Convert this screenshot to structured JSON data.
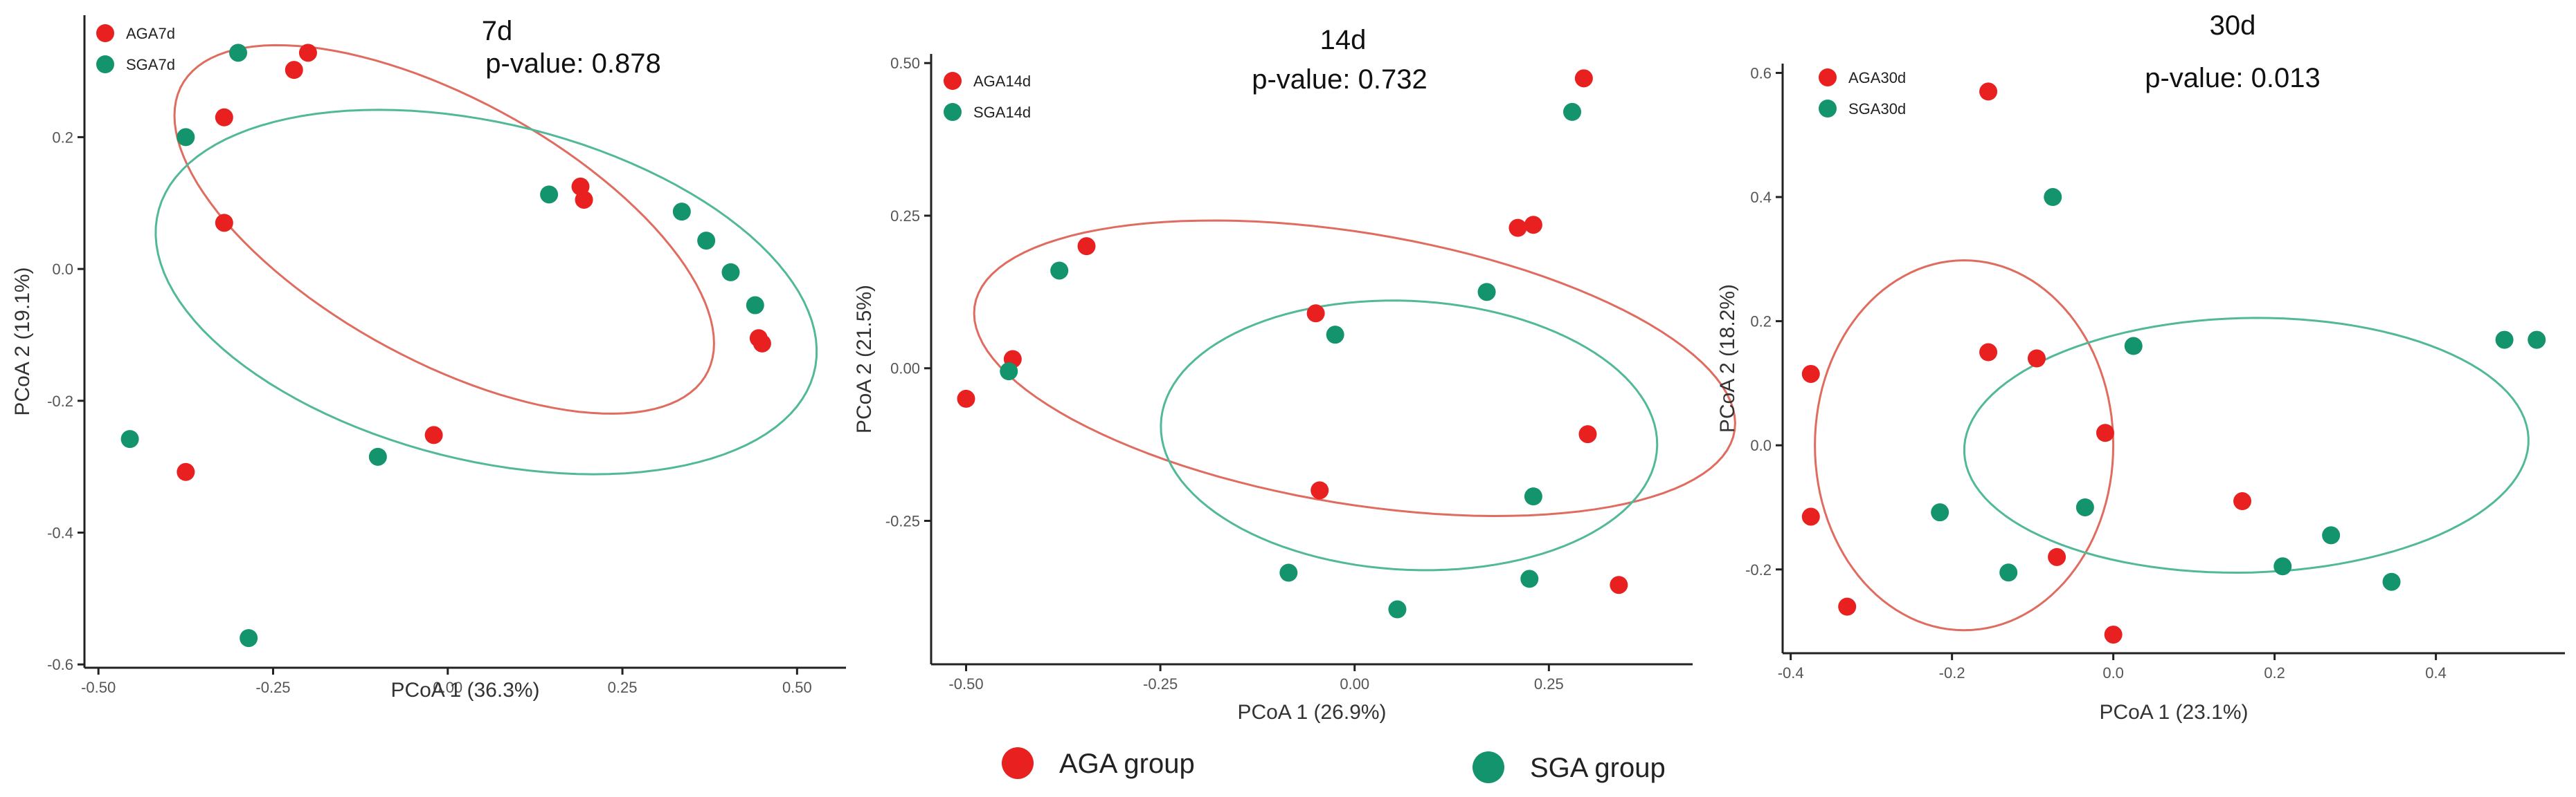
{
  "groups": {
    "AGA": {
      "color": "#e8201f",
      "ellipse_color": "#e06b5f"
    },
    "SGA": {
      "color": "#14946c",
      "ellipse_color": "#52b89a"
    }
  },
  "bottom_legend": {
    "AGA": "AGA group",
    "SGA": "SGA group"
  },
  "chart_data": [
    {
      "type": "scatter",
      "title": "7d",
      "pvalue_label": "p-value: 0.878",
      "xlabel": "PCoA 1 (36.3%)",
      "ylabel": "PCoA 2 (19.1%)",
      "xlim": [
        -0.52,
        0.57
      ],
      "ylim": [
        -0.605,
        0.385
      ],
      "xticks": [
        -0.5,
        -0.25,
        0,
        0.25,
        0.5
      ],
      "xtick_labels": [
        "-0.50",
        "-0.25",
        "0.00",
        "0.25",
        "0.50"
      ],
      "yticks": [
        -0.6,
        -0.4,
        -0.2,
        0,
        0.2
      ],
      "ytick_labels": [
        "-0.6",
        "-0.4",
        "-0.2",
        "0.0",
        "0.2"
      ],
      "legend": [
        "AGA7d",
        "SGA7d"
      ],
      "series": [
        {
          "name": "AGA7d",
          "group": "AGA",
          "points": [
            [
              -0.22,
              0.302
            ],
            [
              -0.2,
              0.328
            ],
            [
              -0.32,
              0.23
            ],
            [
              -0.32,
              0.07
            ],
            [
              0.19,
              0.125
            ],
            [
              0.195,
              0.105
            ],
            [
              -0.02,
              -0.252
            ],
            [
              -0.375,
              -0.308
            ],
            [
              0.445,
              -0.105
            ],
            [
              0.45,
              -0.113
            ]
          ]
        },
        {
          "name": "SGA7d",
          "group": "SGA",
          "points": [
            [
              -0.3,
              0.328
            ],
            [
              -0.375,
              0.2
            ],
            [
              0.145,
              0.113
            ],
            [
              0.335,
              0.087
            ],
            [
              0.37,
              0.043
            ],
            [
              0.405,
              -0.005
            ],
            [
              0.44,
              -0.055
            ],
            [
              -0.1,
              -0.285
            ],
            [
              -0.455,
              -0.258
            ],
            [
              -0.285,
              -0.56
            ]
          ]
        }
      ],
      "ellipses": [
        {
          "group": "AGA",
          "center": [
            -0.005,
            0.06
          ],
          "rx": 0.435,
          "ry": 0.195,
          "angle_deg": -31
        },
        {
          "group": "SGA",
          "center": [
            0.055,
            -0.035
          ],
          "rx": 0.485,
          "ry": 0.255,
          "angle_deg": -15
        }
      ]
    },
    {
      "type": "scatter",
      "title": "14d",
      "pvalue_label": "p-value: 0.732",
      "xlabel": "PCoA 1 (26.9%)",
      "ylabel": "PCoA 2 (21.5%)",
      "xlim": [
        -0.545,
        0.435
      ],
      "ylim": [
        -0.485,
        0.515
      ],
      "xticks": [
        -0.5,
        -0.25,
        0,
        0.25
      ],
      "xtick_labels": [
        "-0.50",
        "-0.25",
        "0.00",
        "0.25"
      ],
      "yticks": [
        -0.25,
        0,
        0.25,
        0.5
      ],
      "ytick_labels": [
        "-0.25",
        "0.00",
        "0.25",
        "0.50"
      ],
      "legend": [
        "AGA14d",
        "SGA14d"
      ],
      "series": [
        {
          "name": "AGA14d",
          "group": "AGA",
          "points": [
            [
              0.295,
              0.475
            ],
            [
              -0.345,
              0.2
            ],
            [
              0.21,
              0.23
            ],
            [
              0.23,
              0.235
            ],
            [
              -0.05,
              0.09
            ],
            [
              -0.44,
              0.015
            ],
            [
              -0.5,
              -0.05
            ],
            [
              0.3,
              -0.108
            ],
            [
              -0.045,
              -0.2
            ],
            [
              0.34,
              -0.355
            ]
          ]
        },
        {
          "name": "SGA14d",
          "group": "SGA",
          "points": [
            [
              0.28,
              0.42
            ],
            [
              -0.38,
              0.16
            ],
            [
              0.17,
              0.125
            ],
            [
              -0.025,
              0.055
            ],
            [
              -0.445,
              -0.005
            ],
            [
              0.23,
              -0.21
            ],
            [
              -0.085,
              -0.335
            ],
            [
              0.225,
              -0.345
            ],
            [
              0.055,
              -0.395
            ]
          ]
        }
      ],
      "ellipses": [
        {
          "group": "AGA",
          "center": [
            0.0,
            0.0
          ],
          "rx": 0.5,
          "ry": 0.22,
          "angle_deg": -13
        },
        {
          "group": "SGA",
          "center": [
            0.07,
            -0.11
          ],
          "rx": 0.32,
          "ry": 0.22,
          "angle_deg": -5
        }
      ]
    },
    {
      "type": "scatter",
      "title": "30d",
      "pvalue_label": "p-value: 0.013",
      "xlabel": "PCoA 1 (23.1%)",
      "ylabel": "PCoA 2 (18.2%)",
      "xlim": [
        -0.41,
        0.56
      ],
      "ylim": [
        -0.335,
        0.615
      ],
      "xticks": [
        -0.4,
        -0.2,
        0,
        0.2,
        0.4
      ],
      "xtick_labels": [
        "-0.4",
        "-0.2",
        "0.0",
        "0.2",
        "0.4"
      ],
      "yticks": [
        -0.2,
        0,
        0.2,
        0.4,
        0.6
      ],
      "ytick_labels": [
        "-0.2",
        "0.0",
        "0.2",
        "0.4",
        "0.6"
      ],
      "legend": [
        "AGA30d",
        "SGA30d"
      ],
      "series": [
        {
          "name": "AGA30d",
          "group": "AGA",
          "points": [
            [
              -0.155,
              0.57
            ],
            [
              -0.155,
              0.15
            ],
            [
              -0.095,
              0.14
            ],
            [
              -0.375,
              0.115
            ],
            [
              -0.01,
              0.02
            ],
            [
              -0.375,
              -0.115
            ],
            [
              0.16,
              -0.09
            ],
            [
              -0.07,
              -0.18
            ],
            [
              -0.33,
              -0.26
            ],
            [
              0.0,
              -0.305
            ]
          ]
        },
        {
          "name": "SGA30d",
          "group": "SGA",
          "points": [
            [
              -0.075,
              0.4
            ],
            [
              0.025,
              0.16
            ],
            [
              0.485,
              0.17
            ],
            [
              0.525,
              0.17
            ],
            [
              -0.215,
              -0.108
            ],
            [
              -0.035,
              -0.1
            ],
            [
              0.27,
              -0.145
            ],
            [
              -0.13,
              -0.205
            ],
            [
              0.21,
              -0.195
            ],
            [
              0.345,
              -0.22
            ]
          ]
        }
      ],
      "ellipses": [
        {
          "group": "AGA",
          "center": [
            -0.185,
            0.0
          ],
          "rx": 0.185,
          "ry": 0.298,
          "angle_deg": 0
        },
        {
          "group": "SGA",
          "center": [
            0.165,
            0.0
          ],
          "rx": 0.35,
          "ry": 0.205,
          "angle_deg": 2
        }
      ]
    }
  ]
}
